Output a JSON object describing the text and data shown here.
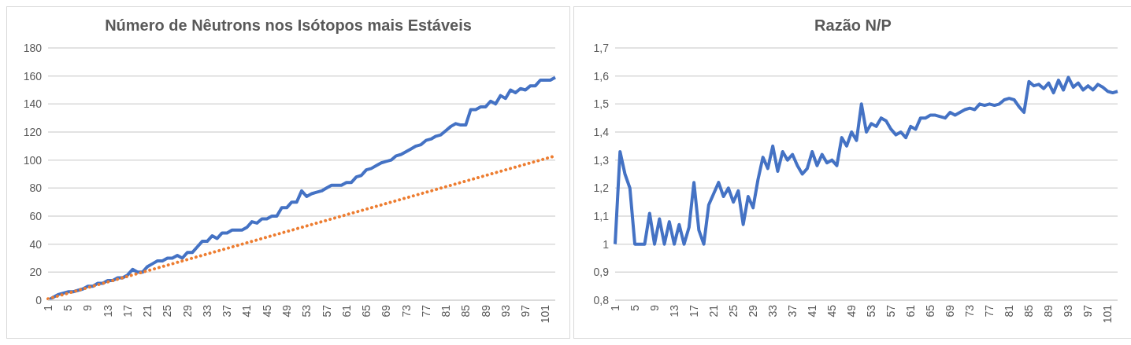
{
  "chart_data": [
    {
      "type": "line",
      "title": "Número de Nêutrons nos Isótopos mais Estáveis",
      "categories": [
        "1",
        null,
        null,
        null,
        "5",
        null,
        null,
        null,
        "9",
        null,
        null,
        null,
        "13",
        null,
        null,
        null,
        "17",
        null,
        null,
        null,
        "21",
        null,
        null,
        null,
        "25",
        null,
        null,
        null,
        "29",
        null,
        null,
        null,
        "33",
        null,
        null,
        null,
        "37",
        null,
        null,
        null,
        "41",
        null,
        null,
        null,
        "45",
        null,
        null,
        null,
        "49",
        null,
        null,
        null,
        "53",
        null,
        null,
        null,
        "57",
        null,
        null,
        null,
        "61",
        null,
        null,
        null,
        "65",
        null,
        null,
        null,
        "69",
        null,
        null,
        null,
        "73",
        null,
        null,
        null,
        "77",
        null,
        null,
        null,
        "81",
        null,
        null,
        null,
        "85",
        null,
        null,
        null,
        "89",
        null,
        null,
        null,
        "93",
        null,
        null,
        null,
        "97",
        null,
        null,
        null,
        "101",
        null,
        null
      ],
      "series": [
        {
          "color": "#4472c4",
          "line_style": "solid",
          "values": [
            0,
            2,
            4,
            5,
            6,
            6,
            7,
            8,
            10,
            10,
            12,
            12,
            14,
            14,
            16,
            16,
            18,
            22,
            20,
            20,
            24,
            26,
            28,
            28,
            30,
            30,
            32,
            30,
            34,
            34,
            38,
            42,
            42,
            46,
            44,
            48,
            48,
            50,
            50,
            50,
            52,
            56,
            55,
            58,
            58,
            60,
            60,
            66,
            66,
            70,
            70,
            78,
            74,
            76,
            77,
            78,
            80,
            82,
            82,
            82,
            84,
            84,
            88,
            89,
            93,
            94,
            96,
            98,
            99,
            100,
            103,
            104,
            106,
            108,
            110,
            111,
            114,
            115,
            117,
            118,
            121,
            124,
            126,
            125,
            125,
            136,
            136,
            138,
            138,
            142,
            140,
            146,
            144,
            150,
            148,
            151,
            150,
            153,
            153,
            157,
            157,
            157,
            159
          ]
        },
        {
          "color": "#ed7d31",
          "line_style": "dotted",
          "values": [
            1,
            2,
            3,
            4,
            5,
            6,
            7,
            8,
            9,
            10,
            11,
            12,
            13,
            14,
            15,
            16,
            17,
            18,
            19,
            20,
            21,
            22,
            23,
            24,
            25,
            26,
            27,
            28,
            29,
            30,
            31,
            32,
            33,
            34,
            35,
            36,
            37,
            38,
            39,
            40,
            41,
            42,
            43,
            44,
            45,
            46,
            47,
            48,
            49,
            50,
            51,
            52,
            53,
            54,
            55,
            56,
            57,
            58,
            59,
            60,
            61,
            62,
            63,
            64,
            65,
            66,
            67,
            68,
            69,
            70,
            71,
            72,
            73,
            74,
            75,
            76,
            77,
            78,
            79,
            80,
            81,
            82,
            83,
            84,
            85,
            86,
            87,
            88,
            89,
            90,
            91,
            92,
            93,
            94,
            95,
            96,
            97,
            98,
            99,
            100,
            101,
            102,
            103
          ]
        }
      ],
      "ylim": [
        0,
        180
      ],
      "yticks": [
        0,
        20,
        40,
        60,
        80,
        100,
        120,
        140,
        160,
        180
      ],
      "grid": "y",
      "marker": "none"
    },
    {
      "type": "line",
      "title": "Razão N/P",
      "categories": [
        "1",
        null,
        null,
        null,
        "5",
        null,
        null,
        null,
        "9",
        null,
        null,
        null,
        "13",
        null,
        null,
        null,
        "17",
        null,
        null,
        null,
        "21",
        null,
        null,
        null,
        "25",
        null,
        null,
        null,
        "29",
        null,
        null,
        null,
        "33",
        null,
        null,
        null,
        "37",
        null,
        null,
        null,
        "41",
        null,
        null,
        null,
        "45",
        null,
        null,
        null,
        "49",
        null,
        null,
        null,
        "53",
        null,
        null,
        null,
        "57",
        null,
        null,
        null,
        "61",
        null,
        null,
        null,
        "65",
        null,
        null,
        null,
        "69",
        null,
        null,
        null,
        "73",
        null,
        null,
        null,
        "77",
        null,
        null,
        null,
        "81",
        null,
        null,
        null,
        "85",
        null,
        null,
        null,
        "89",
        null,
        null,
        null,
        "93",
        null,
        null,
        null,
        "97",
        null,
        null,
        null,
        "101",
        null,
        null
      ],
      "series": [
        {
          "color": "#4472c4",
          "line_style": "solid",
          "values": [
            1.0,
            1.33,
            1.25,
            1.2,
            1.0,
            1.0,
            1.0,
            1.11,
            1.0,
            1.09,
            1.0,
            1.08,
            1.0,
            1.07,
            1.0,
            1.06,
            1.22,
            1.05,
            1.0,
            1.14,
            1.18,
            1.22,
            1.17,
            1.2,
            1.15,
            1.19,
            1.07,
            1.17,
            1.13,
            1.23,
            1.31,
            1.27,
            1.35,
            1.26,
            1.33,
            1.3,
            1.32,
            1.28,
            1.25,
            1.27,
            1.33,
            1.28,
            1.32,
            1.29,
            1.3,
            1.28,
            1.38,
            1.35,
            1.4,
            1.37,
            1.5,
            1.4,
            1.43,
            1.42,
            1.45,
            1.44,
            1.41,
            1.39,
            1.4,
            1.38,
            1.42,
            1.41,
            1.45,
            1.45,
            1.46,
            1.46,
            1.455,
            1.45,
            1.47,
            1.46,
            1.47,
            1.48,
            1.485,
            1.48,
            1.5,
            1.495,
            1.5,
            1.495,
            1.5,
            1.515,
            1.52,
            1.515,
            1.49,
            1.47,
            1.58,
            1.565,
            1.57,
            1.555,
            1.575,
            1.54,
            1.585,
            1.55,
            1.595,
            1.56,
            1.575,
            1.55,
            1.565,
            1.55,
            1.57,
            1.56,
            1.545,
            1.54,
            1.545
          ]
        }
      ],
      "ylim": [
        0.8,
        1.7
      ],
      "yticks": [
        {
          "value": 0.8,
          "label": "0,8"
        },
        {
          "value": 0.9,
          "label": "0,9"
        },
        {
          "value": 1,
          "label": "1"
        },
        {
          "value": 1.1,
          "label": "1,1"
        },
        {
          "value": 1.2,
          "label": "1,2"
        },
        {
          "value": 1.3,
          "label": "1,3"
        },
        {
          "value": 1.4,
          "label": "1,4"
        },
        {
          "value": 1.5,
          "label": "1,5"
        },
        {
          "value": 1.6,
          "label": "1,6"
        },
        {
          "value": 1.7,
          "label": "1,7"
        }
      ],
      "grid": "y",
      "marker": "none"
    }
  ]
}
